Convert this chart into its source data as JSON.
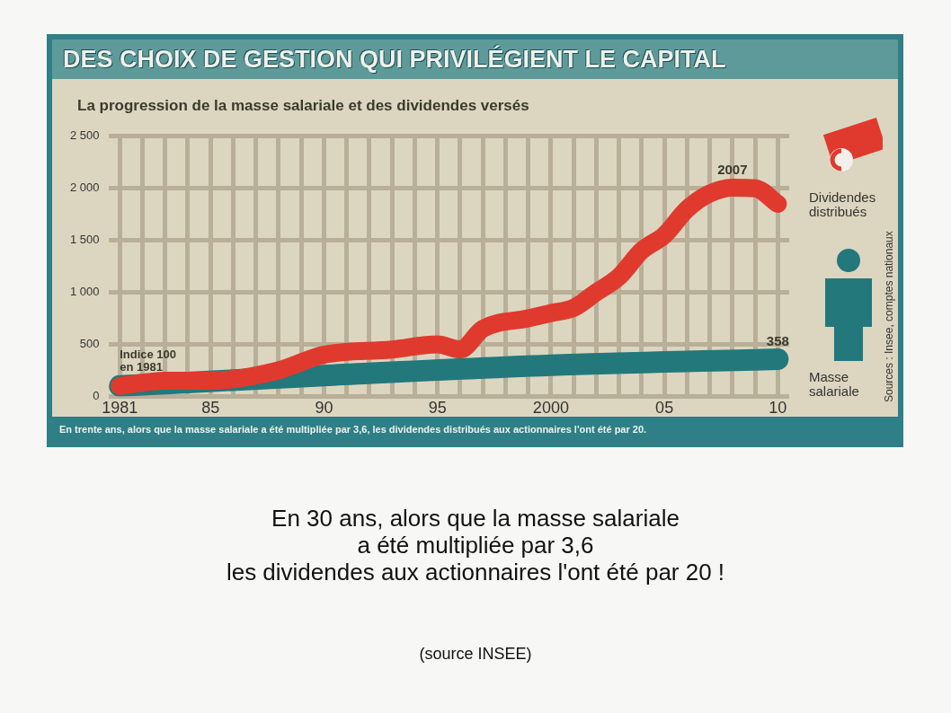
{
  "chart_data": {
    "type": "line",
    "title": "DES CHOIX DE GESTION QUI PRIVILÉGIENT LE CAPITAL",
    "subtitle": "La progression de la masse salariale et des dividendes versés",
    "series": [
      {
        "name": "Dividendes distribués",
        "color": "#e03a2e",
        "x": [
          1981,
          1983,
          1985,
          1988,
          1990,
          1993,
          1995,
          1996,
          1997,
          1999,
          2000,
          2001,
          2002,
          2003,
          2004,
          2005,
          2006,
          2007,
          2008,
          2009,
          2010
        ],
        "values": [
          100,
          150,
          150,
          250,
          400,
          450,
          500,
          450,
          650,
          750,
          800,
          850,
          1000,
          1150,
          1400,
          1550,
          1800,
          1950,
          2007,
          2000,
          1850
        ],
        "value_labels": [
          null,
          null,
          null,
          null,
          null,
          null,
          null,
          null,
          null,
          null,
          null,
          null,
          null,
          null,
          null,
          null,
          null,
          null,
          "2007",
          null,
          null
        ]
      },
      {
        "name": "Masse salariale",
        "color": "#23787c",
        "x": [
          1981,
          1990,
          2000,
          2010
        ],
        "values": [
          100,
          200,
          300,
          358
        ],
        "value_labels": [
          null,
          null,
          null,
          "358"
        ]
      }
    ],
    "xlim": [
      1980.5,
      2010.5
    ],
    "xticks": [
      {
        "value": 1981,
        "label": "1981"
      },
      {
        "value": 1982,
        "label": null
      },
      {
        "value": 1983,
        "label": null
      },
      {
        "value": 1984,
        "label": null
      },
      {
        "value": 1985,
        "label": "85"
      },
      {
        "value": 1986,
        "label": null
      },
      {
        "value": 1987,
        "label": null
      },
      {
        "value": 1988,
        "label": null
      },
      {
        "value": 1989,
        "label": null
      },
      {
        "value": 1990,
        "label": "90"
      },
      {
        "value": 1991,
        "label": null
      },
      {
        "value": 1992,
        "label": null
      },
      {
        "value": 1993,
        "label": null
      },
      {
        "value": 1994,
        "label": null
      },
      {
        "value": 1995,
        "label": "95"
      },
      {
        "value": 1996,
        "label": null
      },
      {
        "value": 1997,
        "label": null
      },
      {
        "value": 1998,
        "label": null
      },
      {
        "value": 1999,
        "label": null
      },
      {
        "value": 2000,
        "label": "2000"
      },
      {
        "value": 2001,
        "label": null
      },
      {
        "value": 2002,
        "label": null
      },
      {
        "value": 2003,
        "label": null
      },
      {
        "value": 2004,
        "label": null
      },
      {
        "value": 2005,
        "label": "05"
      },
      {
        "value": 2006,
        "label": null
      },
      {
        "value": 2007,
        "label": null
      },
      {
        "value": 2008,
        "label": null
      },
      {
        "value": 2009,
        "label": null
      },
      {
        "value": 2010,
        "label": "10"
      }
    ],
    "ylim": [
      0,
      2500
    ],
    "yticks": [
      0,
      500,
      {
        "value": 1000,
        "label": "1 000"
      },
      {
        "value": 1500,
        "label": "1 500"
      },
      {
        "value": 2000,
        "label": "2 000"
      },
      {
        "value": 2500,
        "label": "2 500"
      }
    ],
    "grid": true,
    "legend": "right",
    "marker": "none",
    "annotations": [
      {
        "text": "Indice 100 en 1981",
        "x": 1981,
        "y": 100
      },
      "Sources : Insee, comptes nationaux",
      "En trente ans, alors que la masse salariale a été multipliée par 3,6, les dividendes distribués aux actionnaires l'ont été par 20.",
      "En 30 ans, alors que la masse salariale\na été multipliée par 3,6\nles dividendes aux actionnaires l'ont été par 20 !",
      "(source INSEE)"
    ]
  }
}
